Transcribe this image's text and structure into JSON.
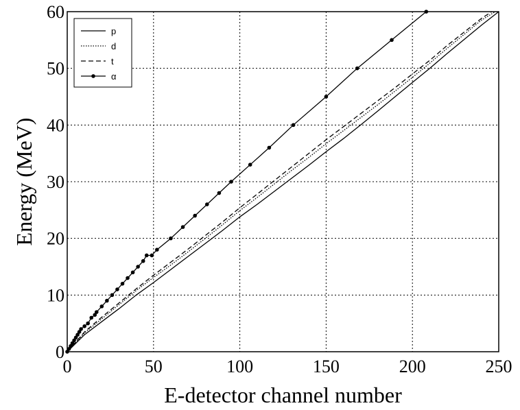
{
  "chart_data": {
    "type": "line",
    "title": "",
    "xlabel": "E-detector channel number",
    "ylabel": "Energy (MeV)",
    "xlim": [
      0,
      250
    ],
    "ylim": [
      0,
      60
    ],
    "xticks": [
      "0",
      "50",
      "100",
      "150",
      "200",
      "250"
    ],
    "yticks": [
      "0",
      "10",
      "20",
      "30",
      "40",
      "50",
      "60"
    ],
    "grid": true,
    "legend_position": "top-left",
    "series": [
      {
        "name": "p",
        "style": "solid",
        "markers": false,
        "points": [
          [
            0,
            0
          ],
          [
            10,
            3
          ],
          [
            20,
            5.3
          ],
          [
            30,
            7.6
          ],
          [
            40,
            10
          ],
          [
            50,
            12.2
          ],
          [
            60,
            14.5
          ],
          [
            70,
            16.8
          ],
          [
            80,
            19.1
          ],
          [
            90,
            21.4
          ],
          [
            100,
            23.8
          ],
          [
            110,
            26
          ],
          [
            120,
            28.3
          ],
          [
            130,
            30.6
          ],
          [
            140,
            32.9
          ],
          [
            150,
            35.3
          ],
          [
            160,
            37.6
          ],
          [
            170,
            40
          ],
          [
            180,
            42.5
          ],
          [
            190,
            45
          ],
          [
            200,
            47.5
          ],
          [
            210,
            50
          ],
          [
            220,
            52.6
          ],
          [
            230,
            55.1
          ],
          [
            240,
            57.6
          ],
          [
            250,
            60
          ]
        ]
      },
      {
        "name": "d",
        "style": "dotted",
        "markers": false,
        "points": [
          [
            0,
            0
          ],
          [
            10,
            3.3
          ],
          [
            20,
            5.8
          ],
          [
            30,
            8.3
          ],
          [
            40,
            10.8
          ],
          [
            50,
            13.1
          ],
          [
            60,
            15.3
          ],
          [
            70,
            17.6
          ],
          [
            80,
            20
          ],
          [
            90,
            22.4
          ],
          [
            100,
            24.9
          ],
          [
            110,
            27.2
          ],
          [
            120,
            29.6
          ],
          [
            130,
            32
          ],
          [
            140,
            34.3
          ],
          [
            150,
            36.7
          ],
          [
            160,
            39
          ],
          [
            170,
            41.3
          ],
          [
            180,
            43.6
          ],
          [
            190,
            46
          ],
          [
            200,
            48.4
          ],
          [
            210,
            50.9
          ],
          [
            220,
            53.5
          ],
          [
            230,
            56
          ],
          [
            240,
            58.5
          ],
          [
            248,
            60
          ]
        ]
      },
      {
        "name": "t",
        "style": "dashed",
        "markers": false,
        "points": [
          [
            0,
            0
          ],
          [
            10,
            3.5
          ],
          [
            20,
            6.1
          ],
          [
            30,
            8.6
          ],
          [
            40,
            11.1
          ],
          [
            50,
            13.5
          ],
          [
            60,
            15.8
          ],
          [
            70,
            18.1
          ],
          [
            80,
            20.5
          ],
          [
            90,
            22.9
          ],
          [
            100,
            25.4
          ],
          [
            110,
            27.8
          ],
          [
            120,
            30.2
          ],
          [
            130,
            32.6
          ],
          [
            140,
            35
          ],
          [
            150,
            37.4
          ],
          [
            160,
            39.7
          ],
          [
            170,
            42
          ],
          [
            180,
            44.3
          ],
          [
            190,
            46.6
          ],
          [
            200,
            49
          ],
          [
            210,
            51.4
          ],
          [
            220,
            54
          ],
          [
            230,
            56.4
          ],
          [
            240,
            58.8
          ],
          [
            246,
            60
          ]
        ]
      },
      {
        "name": "α",
        "style": "solid",
        "markers": true,
        "points": [
          [
            0,
            0
          ],
          [
            1,
            0.5
          ],
          [
            2,
            1
          ],
          [
            3,
            1.5
          ],
          [
            4,
            2
          ],
          [
            5,
            2.5
          ],
          [
            6,
            3
          ],
          [
            7,
            3.5
          ],
          [
            8,
            4
          ],
          [
            10,
            4.5
          ],
          [
            12,
            5
          ],
          [
            14,
            6
          ],
          [
            16,
            6.5
          ],
          [
            17,
            7
          ],
          [
            20,
            8
          ],
          [
            23,
            9
          ],
          [
            26,
            10
          ],
          [
            29,
            11
          ],
          [
            32,
            12
          ],
          [
            35,
            13
          ],
          [
            38,
            14
          ],
          [
            41,
            15
          ],
          [
            44,
            16
          ],
          [
            46,
            17
          ],
          [
            49,
            17
          ],
          [
            52,
            18
          ],
          [
            60,
            20
          ],
          [
            67,
            22
          ],
          [
            74,
            24
          ],
          [
            81,
            26
          ],
          [
            88,
            28
          ],
          [
            95,
            30
          ],
          [
            106,
            33
          ],
          [
            117,
            36
          ],
          [
            131,
            40
          ],
          [
            150,
            45
          ],
          [
            168,
            50
          ],
          [
            188,
            55
          ],
          [
            208,
            60
          ]
        ]
      }
    ]
  }
}
